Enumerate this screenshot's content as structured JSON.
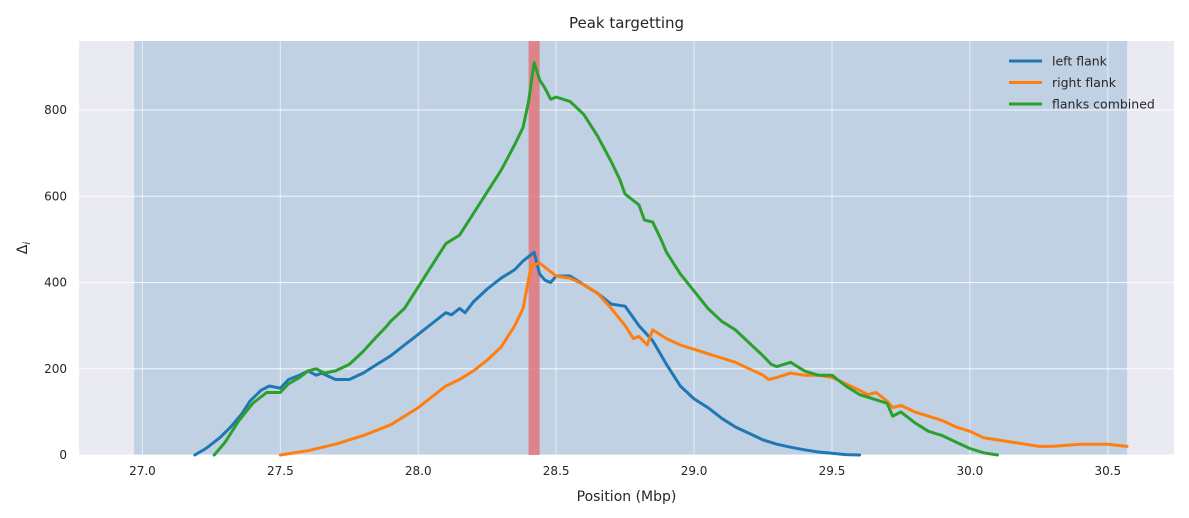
{
  "chart_data": {
    "type": "line",
    "title": "Peak targetting",
    "xlabel": "Position (Mbp)",
    "ylabel": "Δ",
    "ylabel_subscript": "i",
    "xlim": [
      26.77,
      30.74
    ],
    "ylim": [
      0,
      960
    ],
    "xticks": [
      27.0,
      27.5,
      28.0,
      28.5,
      29.0,
      29.5,
      30.0,
      30.5
    ],
    "yticks": [
      0,
      200,
      400,
      600,
      800
    ],
    "grid": true,
    "legend_position": "top-right",
    "background_color": "#eaeaf2",
    "shaded_region": {
      "x_start": 26.97,
      "x_end": 30.57,
      "color": "#aac3dc"
    },
    "highlight_region": {
      "x_start": 28.4,
      "x_end": 28.44,
      "color": "#e07b80"
    },
    "series": [
      {
        "name": "left flank",
        "color": "#1f77b4",
        "points": [
          [
            27.19,
            0
          ],
          [
            27.23,
            15
          ],
          [
            27.28,
            40
          ],
          [
            27.32,
            65
          ],
          [
            27.36,
            95
          ],
          [
            27.39,
            125
          ],
          [
            27.43,
            150
          ],
          [
            27.46,
            160
          ],
          [
            27.5,
            155
          ],
          [
            27.53,
            175
          ],
          [
            27.57,
            185
          ],
          [
            27.6,
            195
          ],
          [
            27.63,
            185
          ],
          [
            27.65,
            190
          ],
          [
            27.7,
            175
          ],
          [
            27.75,
            175
          ],
          [
            27.8,
            190
          ],
          [
            27.85,
            210
          ],
          [
            27.9,
            230
          ],
          [
            27.95,
            255
          ],
          [
            28.0,
            280
          ],
          [
            28.05,
            305
          ],
          [
            28.1,
            330
          ],
          [
            28.12,
            325
          ],
          [
            28.15,
            340
          ],
          [
            28.17,
            330
          ],
          [
            28.2,
            355
          ],
          [
            28.25,
            385
          ],
          [
            28.3,
            410
          ],
          [
            28.35,
            430
          ],
          [
            28.38,
            450
          ],
          [
            28.42,
            470
          ],
          [
            28.44,
            420
          ],
          [
            28.46,
            405
          ],
          [
            28.48,
            400
          ],
          [
            28.5,
            415
          ],
          [
            28.55,
            415
          ],
          [
            28.6,
            395
          ],
          [
            28.65,
            375
          ],
          [
            28.7,
            350
          ],
          [
            28.75,
            345
          ],
          [
            28.8,
            300
          ],
          [
            28.85,
            265
          ],
          [
            28.9,
            210
          ],
          [
            28.95,
            160
          ],
          [
            29.0,
            130
          ],
          [
            29.05,
            110
          ],
          [
            29.1,
            85
          ],
          [
            29.15,
            65
          ],
          [
            29.2,
            50
          ],
          [
            29.25,
            35
          ],
          [
            29.3,
            25
          ],
          [
            29.35,
            18
          ],
          [
            29.4,
            12
          ],
          [
            29.45,
            7
          ],
          [
            29.5,
            4
          ],
          [
            29.55,
            1
          ],
          [
            29.6,
            0
          ]
        ]
      },
      {
        "name": "right flank",
        "color": "#ff7f0e",
        "points": [
          [
            27.5,
            0
          ],
          [
            27.6,
            10
          ],
          [
            27.7,
            25
          ],
          [
            27.8,
            45
          ],
          [
            27.9,
            70
          ],
          [
            28.0,
            110
          ],
          [
            28.05,
            135
          ],
          [
            28.1,
            160
          ],
          [
            28.15,
            175
          ],
          [
            28.2,
            195
          ],
          [
            28.25,
            220
          ],
          [
            28.3,
            250
          ],
          [
            28.35,
            300
          ],
          [
            28.38,
            340
          ],
          [
            28.41,
            440
          ],
          [
            28.44,
            445
          ],
          [
            28.47,
            430
          ],
          [
            28.5,
            415
          ],
          [
            28.55,
            410
          ],
          [
            28.6,
            395
          ],
          [
            28.65,
            375
          ],
          [
            28.7,
            340
          ],
          [
            28.75,
            300
          ],
          [
            28.78,
            270
          ],
          [
            28.8,
            275
          ],
          [
            28.83,
            255
          ],
          [
            28.85,
            290
          ],
          [
            28.9,
            270
          ],
          [
            28.95,
            255
          ],
          [
            29.0,
            245
          ],
          [
            29.05,
            235
          ],
          [
            29.1,
            225
          ],
          [
            29.15,
            215
          ],
          [
            29.2,
            200
          ],
          [
            29.25,
            185
          ],
          [
            29.27,
            175
          ],
          [
            29.3,
            180
          ],
          [
            29.35,
            190
          ],
          [
            29.4,
            185
          ],
          [
            29.45,
            185
          ],
          [
            29.5,
            180
          ],
          [
            29.55,
            165
          ],
          [
            29.6,
            150
          ],
          [
            29.63,
            140
          ],
          [
            29.66,
            145
          ],
          [
            29.7,
            125
          ],
          [
            29.72,
            110
          ],
          [
            29.75,
            115
          ],
          [
            29.8,
            100
          ],
          [
            29.85,
            90
          ],
          [
            29.9,
            80
          ],
          [
            29.95,
            65
          ],
          [
            30.0,
            55
          ],
          [
            30.05,
            40
          ],
          [
            30.1,
            35
          ],
          [
            30.2,
            25
          ],
          [
            30.25,
            20
          ],
          [
            30.3,
            20
          ],
          [
            30.4,
            25
          ],
          [
            30.5,
            25
          ],
          [
            30.57,
            20
          ]
        ]
      },
      {
        "name": "flanks combined",
        "color": "#2ca02c",
        "points": [
          [
            27.26,
            0
          ],
          [
            27.3,
            30
          ],
          [
            27.35,
            80
          ],
          [
            27.4,
            120
          ],
          [
            27.45,
            145
          ],
          [
            27.5,
            145
          ],
          [
            27.53,
            165
          ],
          [
            27.57,
            180
          ],
          [
            27.6,
            195
          ],
          [
            27.63,
            200
          ],
          [
            27.66,
            190
          ],
          [
            27.7,
            195
          ],
          [
            27.75,
            210
          ],
          [
            27.8,
            240
          ],
          [
            27.85,
            275
          ],
          [
            27.88,
            295
          ],
          [
            27.9,
            310
          ],
          [
            27.95,
            340
          ],
          [
            28.0,
            390
          ],
          [
            28.05,
            440
          ],
          [
            28.1,
            490
          ],
          [
            28.15,
            510
          ],
          [
            28.2,
            560
          ],
          [
            28.25,
            610
          ],
          [
            28.3,
            660
          ],
          [
            28.35,
            720
          ],
          [
            28.38,
            760
          ],
          [
            28.4,
            820
          ],
          [
            28.42,
            910
          ],
          [
            28.44,
            870
          ],
          [
            28.46,
            850
          ],
          [
            28.48,
            825
          ],
          [
            28.5,
            830
          ],
          [
            28.55,
            820
          ],
          [
            28.6,
            790
          ],
          [
            28.65,
            740
          ],
          [
            28.7,
            680
          ],
          [
            28.73,
            640
          ],
          [
            28.75,
            605
          ],
          [
            28.8,
            580
          ],
          [
            28.82,
            545
          ],
          [
            28.85,
            540
          ],
          [
            28.88,
            500
          ],
          [
            28.9,
            470
          ],
          [
            28.95,
            420
          ],
          [
            29.0,
            380
          ],
          [
            29.05,
            340
          ],
          [
            29.1,
            310
          ],
          [
            29.15,
            290
          ],
          [
            29.2,
            260
          ],
          [
            29.25,
            230
          ],
          [
            29.28,
            210
          ],
          [
            29.3,
            205
          ],
          [
            29.35,
            215
          ],
          [
            29.4,
            195
          ],
          [
            29.45,
            185
          ],
          [
            29.5,
            185
          ],
          [
            29.55,
            160
          ],
          [
            29.6,
            140
          ],
          [
            29.65,
            130
          ],
          [
            29.7,
            120
          ],
          [
            29.72,
            90
          ],
          [
            29.75,
            100
          ],
          [
            29.8,
            75
          ],
          [
            29.85,
            55
          ],
          [
            29.9,
            45
          ],
          [
            29.95,
            30
          ],
          [
            30.0,
            15
          ],
          [
            30.05,
            5
          ],
          [
            30.1,
            0
          ]
        ]
      }
    ]
  }
}
